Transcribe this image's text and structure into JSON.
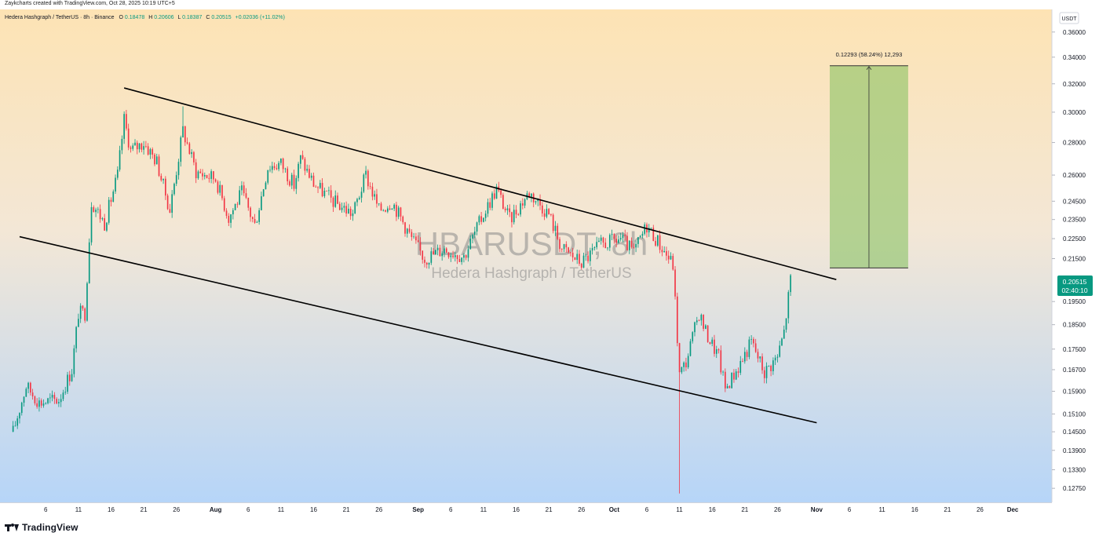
{
  "header": {
    "credit": "Zaykcharts created with TradingView.com, Oct 28, 2025 10:19 UTC+5"
  },
  "legend": {
    "symbol": "Hedera Hashgraph / TetherUS · 8h · Binance",
    "open_label": "O",
    "open": "0.18478",
    "high_label": "H",
    "high": "0.20606",
    "low_label": "L",
    "low": "0.18387",
    "close_label": "C",
    "close": "0.20515",
    "change": "+0.02036 (+11.02%)",
    "value_color": "#089981"
  },
  "watermark": {
    "line1": "HBARUSDT, 8h",
    "line2": "Hedera Hashgraph / TetherUS"
  },
  "price_axis": {
    "currency": "USDT",
    "current_price": "0.20515",
    "countdown": "02:40:10",
    "current_color": "#089981"
  },
  "measure": {
    "label": "0.12293 (58.24%) 12,293",
    "color": "#7fbf5a"
  },
  "brand": {
    "name": "TradingView"
  },
  "colors": {
    "up": "#089981",
    "down": "#f23645",
    "trendline": "#000000",
    "bg_top": "#fde3b4",
    "bg_bottom": "#b6d5f8"
  },
  "chart_data": {
    "type": "candlestick",
    "scale": "log",
    "ylim": [
      0.1235,
      0.379
    ],
    "y_ticks": [
      "0.36000",
      "0.34000",
      "0.32000",
      "0.30000",
      "0.28000",
      "0.26000",
      "0.24500",
      "0.23500",
      "0.22500",
      "0.21500",
      "0.19500",
      "0.18500",
      "0.17500",
      "0.16700",
      "0.15900",
      "0.15100",
      "0.14500",
      "0.13900",
      "0.13300",
      "0.12750"
    ],
    "x_ticks": [
      {
        "label": "6",
        "date": "2025-07-06"
      },
      {
        "label": "11",
        "date": "2025-07-11"
      },
      {
        "label": "16",
        "date": "2025-07-16"
      },
      {
        "label": "21",
        "date": "2025-07-21"
      },
      {
        "label": "26",
        "date": "2025-07-26"
      },
      {
        "label": "Aug",
        "date": "2025-08-01",
        "bold": true
      },
      {
        "label": "6",
        "date": "2025-08-06"
      },
      {
        "label": "11",
        "date": "2025-08-11"
      },
      {
        "label": "16",
        "date": "2025-08-16"
      },
      {
        "label": "21",
        "date": "2025-08-21"
      },
      {
        "label": "26",
        "date": "2025-08-26"
      },
      {
        "label": "Sep",
        "date": "2025-09-01",
        "bold": true
      },
      {
        "label": "6",
        "date": "2025-09-06"
      },
      {
        "label": "11",
        "date": "2025-09-11"
      },
      {
        "label": "16",
        "date": "2025-09-16"
      },
      {
        "label": "21",
        "date": "2025-09-21"
      },
      {
        "label": "26",
        "date": "2025-09-26"
      },
      {
        "label": "Oct",
        "date": "2025-10-01",
        "bold": true
      },
      {
        "label": "6",
        "date": "2025-10-06"
      },
      {
        "label": "11",
        "date": "2025-10-11"
      },
      {
        "label": "16",
        "date": "2025-10-16"
      },
      {
        "label": "21",
        "date": "2025-10-21"
      },
      {
        "label": "26",
        "date": "2025-10-26"
      },
      {
        "label": "Nov",
        "date": "2025-11-01",
        "bold": true
      },
      {
        "label": "6",
        "date": "2025-11-06"
      },
      {
        "label": "11",
        "date": "2025-11-11"
      },
      {
        "label": "16",
        "date": "2025-11-16"
      },
      {
        "label": "21",
        "date": "2025-11-21"
      },
      {
        "label": "26",
        "date": "2025-11-26"
      },
      {
        "label": "Dec",
        "date": "2025-12-01",
        "bold": true
      }
    ],
    "price_path": [
      [
        "2025-07-01",
        0.145
      ],
      [
        "2025-07-03",
        0.161
      ],
      [
        "2025-07-05",
        0.155
      ],
      [
        "2025-07-08",
        0.156
      ],
      [
        "2025-07-10",
        0.167
      ],
      [
        "2025-07-11",
        0.19
      ],
      [
        "2025-07-12",
        0.19
      ],
      [
        "2025-07-13",
        0.245
      ],
      [
        "2025-07-15",
        0.233
      ],
      [
        "2025-07-17",
        0.26
      ],
      [
        "2025-07-18",
        0.295
      ],
      [
        "2025-07-19",
        0.275
      ],
      [
        "2025-07-21",
        0.28
      ],
      [
        "2025-07-23",
        0.268
      ],
      [
        "2025-07-25",
        0.24
      ],
      [
        "2025-07-27",
        0.288
      ],
      [
        "2025-07-29",
        0.262
      ],
      [
        "2025-08-01",
        0.258
      ],
      [
        "2025-08-03",
        0.236
      ],
      [
        "2025-08-05",
        0.25
      ],
      [
        "2025-08-07",
        0.232
      ],
      [
        "2025-08-09",
        0.265
      ],
      [
        "2025-08-11",
        0.267
      ],
      [
        "2025-08-13",
        0.254
      ],
      [
        "2025-08-14",
        0.27
      ],
      [
        "2025-08-16",
        0.255
      ],
      [
        "2025-08-19",
        0.245
      ],
      [
        "2025-08-22",
        0.238
      ],
      [
        "2025-08-24",
        0.26
      ],
      [
        "2025-08-26",
        0.24
      ],
      [
        "2025-08-28",
        0.245
      ],
      [
        "2025-08-31",
        0.225
      ],
      [
        "2025-09-02",
        0.215
      ],
      [
        "2025-09-05",
        0.22
      ],
      [
        "2025-09-08",
        0.216
      ],
      [
        "2025-09-11",
        0.238
      ],
      [
        "2025-09-13",
        0.252
      ],
      [
        "2025-09-15",
        0.235
      ],
      [
        "2025-09-18",
        0.25
      ],
      [
        "2025-09-21",
        0.238
      ],
      [
        "2025-09-23",
        0.22
      ],
      [
        "2025-09-26",
        0.213
      ],
      [
        "2025-09-29",
        0.222
      ],
      [
        "2025-10-02",
        0.225
      ],
      [
        "2025-10-04",
        0.218
      ],
      [
        "2025-10-06",
        0.232
      ],
      [
        "2025-10-08",
        0.222
      ],
      [
        "2025-10-10",
        0.212
      ],
      [
        "2025-10-11",
        0.165
      ],
      [
        "2025-10-12",
        0.17
      ],
      [
        "2025-10-14",
        0.19
      ],
      [
        "2025-10-15",
        0.182
      ],
      [
        "2025-10-17",
        0.172
      ],
      [
        "2025-10-18",
        0.16
      ],
      [
        "2025-10-20",
        0.168
      ],
      [
        "2025-10-22",
        0.178
      ],
      [
        "2025-10-24",
        0.166
      ],
      [
        "2025-10-26",
        0.172
      ],
      [
        "2025-10-27",
        0.182
      ],
      [
        "2025-10-28",
        0.205
      ]
    ],
    "wick_extremes": [
      {
        "date": "2025-07-18",
        "high": 0.3
      },
      {
        "date": "2025-07-27",
        "high": 0.304
      },
      {
        "date": "2025-10-11",
        "low": 0.126
      }
    ],
    "trendlines": [
      {
        "from": [
          "2025-07-18",
          0.317
        ],
        "to": [
          "2025-11-04",
          0.205
        ]
      },
      {
        "from": [
          "2025-07-02",
          0.226
        ],
        "to": [
          "2025-11-01",
          0.148
        ]
      }
    ],
    "projection_box": {
      "from_date": "2025-11-03",
      "to_date": "2025-11-15",
      "low": 0.2105,
      "high": 0.3334
    }
  }
}
